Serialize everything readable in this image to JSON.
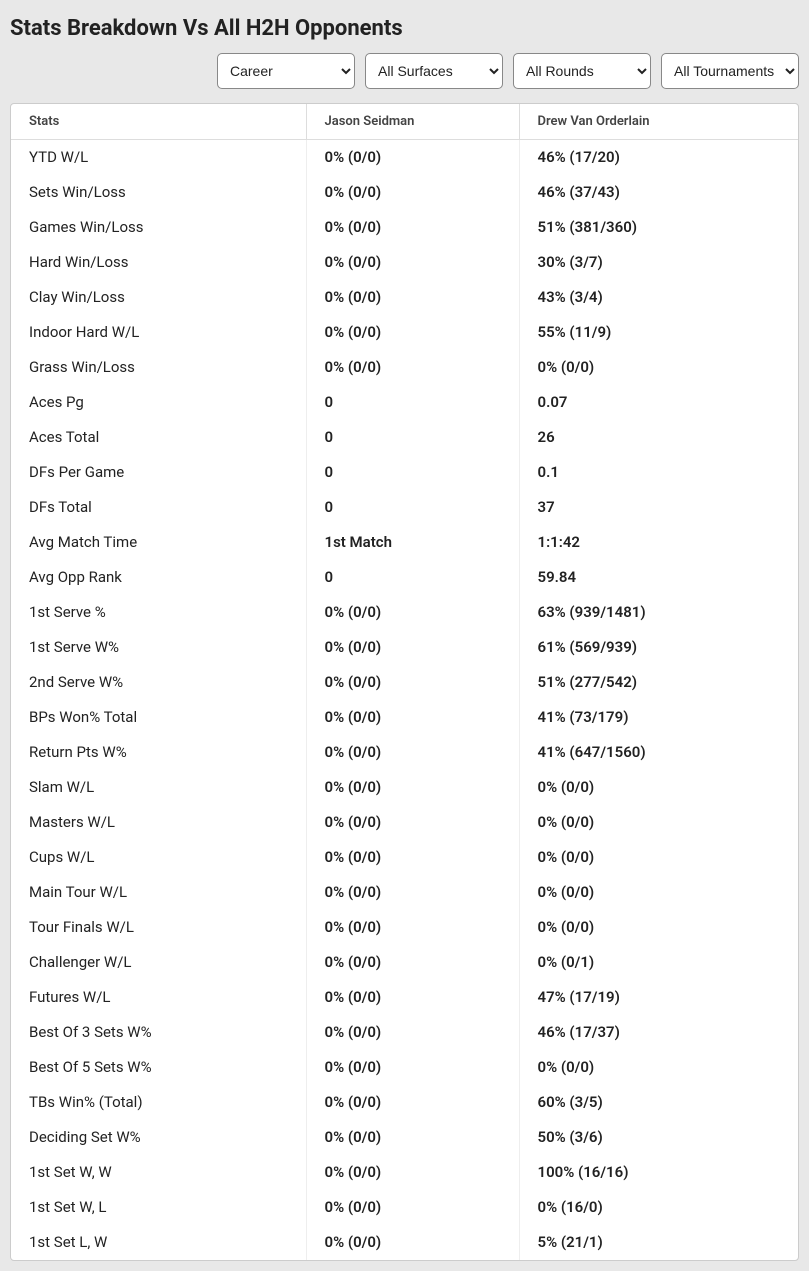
{
  "title": "Stats Breakdown Vs All H2H Opponents",
  "filters": {
    "period": {
      "selected": "Career",
      "options": [
        "Career"
      ]
    },
    "surface": {
      "selected": "All Surfaces",
      "options": [
        "All Surfaces"
      ]
    },
    "round": {
      "selected": "All Rounds",
      "options": [
        "All Rounds"
      ]
    },
    "tourney": {
      "selected": "All Tournaments",
      "options": [
        "All Tournaments"
      ]
    }
  },
  "table": {
    "columns": [
      "Stats",
      "Jason Seidman",
      "Drew Van Orderlain"
    ],
    "rows": [
      [
        "YTD W/L",
        "0% (0/0)",
        "46% (17/20)"
      ],
      [
        "Sets Win/Loss",
        "0% (0/0)",
        "46% (37/43)"
      ],
      [
        "Games Win/Loss",
        "0% (0/0)",
        "51% (381/360)"
      ],
      [
        "Hard Win/Loss",
        "0% (0/0)",
        "30% (3/7)"
      ],
      [
        "Clay Win/Loss",
        "0% (0/0)",
        "43% (3/4)"
      ],
      [
        "Indoor Hard W/L",
        "0% (0/0)",
        "55% (11/9)"
      ],
      [
        "Grass Win/Loss",
        "0% (0/0)",
        "0% (0/0)"
      ],
      [
        "Aces Pg",
        "0",
        "0.07"
      ],
      [
        "Aces Total",
        "0",
        "26"
      ],
      [
        "DFs Per Game",
        "0",
        "0.1"
      ],
      [
        "DFs Total",
        "0",
        "37"
      ],
      [
        "Avg Match Time",
        "1st Match",
        "1:1:42"
      ],
      [
        "Avg Opp Rank",
        "0",
        "59.84"
      ],
      [
        "1st Serve %",
        "0% (0/0)",
        "63% (939/1481)"
      ],
      [
        "1st Serve W%",
        "0% (0/0)",
        "61% (569/939)"
      ],
      [
        "2nd Serve W%",
        "0% (0/0)",
        "51% (277/542)"
      ],
      [
        "BPs Won% Total",
        "0% (0/0)",
        "41% (73/179)"
      ],
      [
        "Return Pts W%",
        "0% (0/0)",
        "41% (647/1560)"
      ],
      [
        "Slam W/L",
        "0% (0/0)",
        "0% (0/0)"
      ],
      [
        "Masters W/L",
        "0% (0/0)",
        "0% (0/0)"
      ],
      [
        "Cups W/L",
        "0% (0/0)",
        "0% (0/0)"
      ],
      [
        "Main Tour W/L",
        "0% (0/0)",
        "0% (0/0)"
      ],
      [
        "Tour Finals W/L",
        "0% (0/0)",
        "0% (0/0)"
      ],
      [
        "Challenger W/L",
        "0% (0/0)",
        "0% (0/1)"
      ],
      [
        "Futures W/L",
        "0% (0/0)",
        "47% (17/19)"
      ],
      [
        "Best Of 3 Sets W%",
        "0% (0/0)",
        "46% (17/37)"
      ],
      [
        "Best Of 5 Sets W%",
        "0% (0/0)",
        "0% (0/0)"
      ],
      [
        "TBs Win% (Total)",
        "0% (0/0)",
        "60% (3/5)"
      ],
      [
        "Deciding Set W%",
        "0% (0/0)",
        "50% (3/6)"
      ],
      [
        "1st Set W, W",
        "0% (0/0)",
        "100% (16/16)"
      ],
      [
        "1st Set W, L",
        "0% (0/0)",
        "0% (16/0)"
      ],
      [
        "1st Set L, W",
        "0% (0/0)",
        "5% (21/1)"
      ]
    ]
  }
}
